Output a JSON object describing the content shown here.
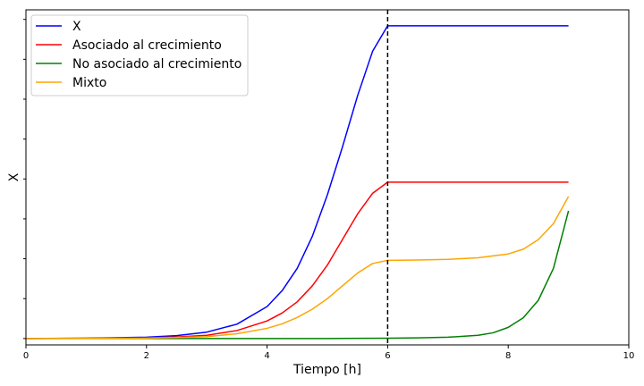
{
  "chart_data": {
    "type": "line",
    "title": "",
    "xlabel": "Tiempo [h]",
    "ylabel": "X",
    "xlim": [
      0,
      10
    ],
    "ylim": [
      -0.02,
      1.03
    ],
    "xticks": [
      0,
      2,
      4,
      6,
      8,
      10
    ],
    "yticks_minor_only": [
      0,
      0.125,
      0.25,
      0.375,
      0.5,
      0.625,
      0.75,
      0.875,
      1.0
    ],
    "grid": false,
    "legend_position": "top-left",
    "vline": {
      "x": 6,
      "style": "dashed",
      "color": "#000000"
    },
    "series": [
      {
        "name": "X",
        "color": "#0000ff",
        "x": [
          0,
          1,
          2,
          2.5,
          3,
          3.5,
          4,
          4.25,
          4.5,
          4.75,
          5,
          5.25,
          5.5,
          5.75,
          6,
          6.5,
          7,
          7.5,
          8,
          8.5,
          9
        ],
        "y": [
          0,
          0.001,
          0.004,
          0.009,
          0.02,
          0.045,
          0.1,
          0.15,
          0.22,
          0.32,
          0.45,
          0.6,
          0.76,
          0.9,
          0.98,
          0.98,
          0.98,
          0.98,
          0.98,
          0.98,
          0.98
        ]
      },
      {
        "name": "Asociado al crecimiento",
        "color": "#ff0000",
        "x": [
          0,
          1,
          2,
          2.5,
          3,
          3.5,
          4,
          4.25,
          4.5,
          4.75,
          5,
          5.25,
          5.5,
          5.75,
          6,
          6.5,
          7,
          7.5,
          8,
          8.5,
          9
        ],
        "y": [
          0,
          0.0005,
          0.002,
          0.005,
          0.01,
          0.025,
          0.055,
          0.08,
          0.115,
          0.165,
          0.23,
          0.31,
          0.39,
          0.455,
          0.49,
          0.49,
          0.49,
          0.49,
          0.49,
          0.49,
          0.49
        ]
      },
      {
        "name": "No asociado al crecimiento",
        "color": "#008000",
        "x": [
          0,
          1,
          2,
          3,
          4,
          5,
          6,
          6.5,
          7,
          7.5,
          7.75,
          8,
          8.25,
          8.5,
          8.75,
          9
        ],
        "y": [
          0,
          0,
          0,
          0,
          0,
          0,
          0.001,
          0.002,
          0.004,
          0.01,
          0.018,
          0.035,
          0.065,
          0.12,
          0.22,
          0.4
        ]
      },
      {
        "name": "Mixto",
        "color": "#ffa500",
        "x": [
          0,
          1,
          2,
          2.5,
          3,
          3.5,
          4,
          4.25,
          4.5,
          4.75,
          5,
          5.25,
          5.5,
          5.75,
          6,
          6.5,
          7,
          7.5,
          8,
          8.25,
          8.5,
          8.75,
          9
        ],
        "y": [
          0,
          0.0003,
          0.001,
          0.003,
          0.006,
          0.015,
          0.032,
          0.046,
          0.066,
          0.092,
          0.125,
          0.165,
          0.205,
          0.235,
          0.245,
          0.246,
          0.248,
          0.253,
          0.265,
          0.28,
          0.31,
          0.36,
          0.445
        ]
      }
    ]
  }
}
